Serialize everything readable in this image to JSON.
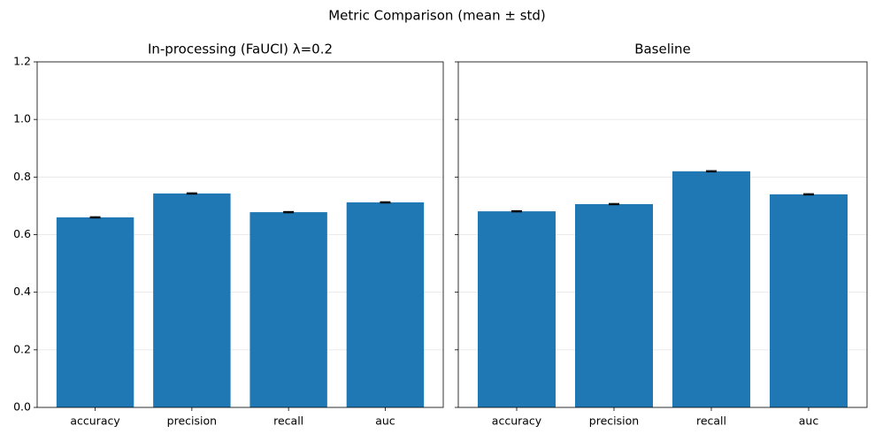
{
  "title": "Metric Comparison (mean ± std)",
  "chart_data": [
    {
      "type": "bar",
      "title": "In-processing (FaUCI) λ=0.2",
      "categories": [
        "accuracy",
        "precision",
        "recall",
        "auc"
      ],
      "values": [
        0.66,
        0.743,
        0.678,
        0.712
      ],
      "errors": [
        0.002,
        0.002,
        0.002,
        0.002
      ],
      "color": "#1f77b4",
      "ylim": [
        0,
        1.2
      ],
      "yticks": [
        {
          "value": 0,
          "label": "0.0"
        },
        0.2,
        0.4,
        0.6,
        0.8,
        {
          "value": 1,
          "label": "1.0"
        },
        1.2
      ],
      "show_ytick_labels": true,
      "grid": true
    },
    {
      "type": "bar",
      "title": "Baseline",
      "categories": [
        "accuracy",
        "precision",
        "recall",
        "auc"
      ],
      "values": [
        0.681,
        0.706,
        0.82,
        0.74
      ],
      "errors": [
        0.002,
        0.002,
        0.002,
        0.002
      ],
      "color": "#1f77b4",
      "ylim": [
        0,
        1.2
      ],
      "yticks": [
        0,
        0.2,
        0.4,
        0.6,
        0.8,
        1,
        1.2
      ],
      "show_ytick_labels": false,
      "grid": true
    }
  ]
}
